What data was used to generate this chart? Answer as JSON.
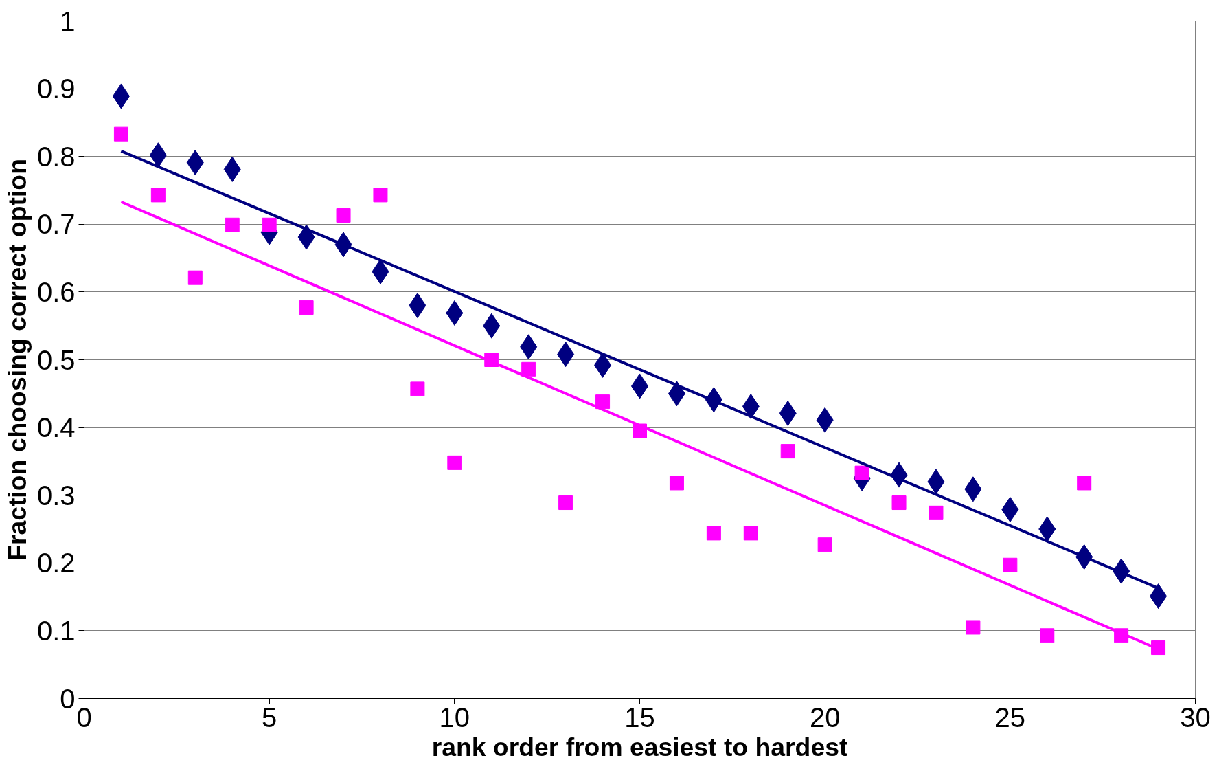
{
  "chart_data": {
    "type": "scatter",
    "xlabel": "rank order from easiest to hardest",
    "ylabel": "Fraction choosing correct option",
    "xlim": [
      0,
      30
    ],
    "xticks": [
      0,
      5,
      10,
      15,
      20,
      25,
      30
    ],
    "ylim": [
      0,
      1
    ],
    "yticks": [
      0,
      0.1,
      0.2,
      0.3,
      0.4,
      0.5,
      0.6,
      0.7,
      0.8,
      0.9,
      1
    ],
    "grid": "y",
    "series": [
      {
        "marker": "diamond",
        "color": "#000080",
        "x": [
          1,
          2,
          3,
          4,
          5,
          6,
          7,
          8,
          9,
          10,
          11,
          12,
          13,
          14,
          15,
          16,
          17,
          18,
          19,
          20,
          21,
          22,
          23,
          24,
          25,
          26,
          27,
          28,
          29
        ],
        "values": [
          0.889,
          0.802,
          0.791,
          0.781,
          0.688,
          0.681,
          0.67,
          0.63,
          0.58,
          0.569,
          0.55,
          0.519,
          0.508,
          0.492,
          0.461,
          0.45,
          0.441,
          0.431,
          0.421,
          0.411,
          0.325,
          0.33,
          0.32,
          0.309,
          0.279,
          0.25,
          0.209,
          0.188,
          0.151
        ]
      },
      {
        "marker": "square",
        "color": "#ff00ff",
        "x": [
          1,
          2,
          3,
          4,
          5,
          6,
          7,
          8,
          9,
          10,
          11,
          12,
          13,
          14,
          15,
          16,
          17,
          18,
          19,
          20,
          21,
          22,
          23,
          24,
          25,
          26,
          27,
          28,
          29
        ],
        "values": [
          0.833,
          0.743,
          0.621,
          0.699,
          0.699,
          0.577,
          0.713,
          0.743,
          0.457,
          0.348,
          0.5,
          0.486,
          0.289,
          0.438,
          0.395,
          0.318,
          0.244,
          0.244,
          0.365,
          0.227,
          0.333,
          0.289,
          0.274,
          0.105,
          0.197,
          0.093,
          0.318,
          0.093,
          0.075
        ]
      },
      {
        "type": "line",
        "color": "#000080",
        "x": [
          1,
          29
        ],
        "values": [
          0.808,
          0.163
        ]
      },
      {
        "type": "line",
        "color": "#ff00ff",
        "x": [
          1,
          29
        ],
        "values": [
          0.733,
          0.073
        ]
      }
    ]
  }
}
